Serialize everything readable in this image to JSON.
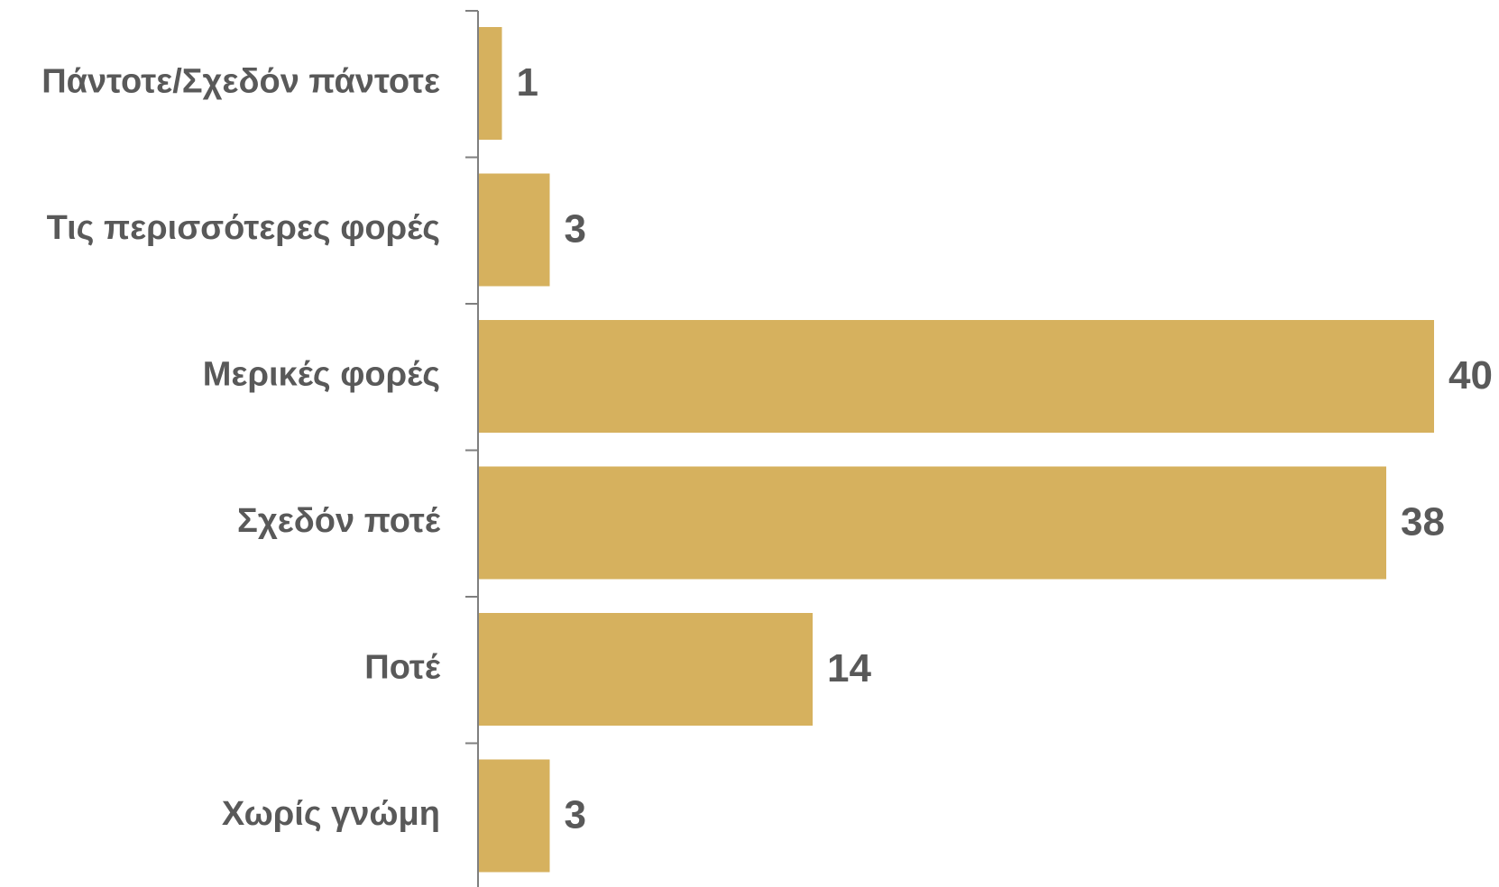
{
  "chart_data": {
    "type": "bar",
    "orientation": "horizontal",
    "categories": [
      "Πάντοτε/Σχεδόν πάντοτε",
      "Τις περισσότερες φορές",
      "Μερικές φορές",
      "Σχεδόν ποτέ",
      "Ποτέ",
      "Χωρίς γνώμη"
    ],
    "values": [
      1,
      3,
      40,
      38,
      14,
      3
    ],
    "data_labels": [
      "1",
      "3",
      "40",
      "38",
      "14",
      "3"
    ],
    "bar_color": "#D6B15E",
    "label_color": "#595959",
    "axis_color": "#7F7F7F",
    "xlim": [
      0,
      40
    ],
    "grid": false,
    "legend": "none"
  }
}
